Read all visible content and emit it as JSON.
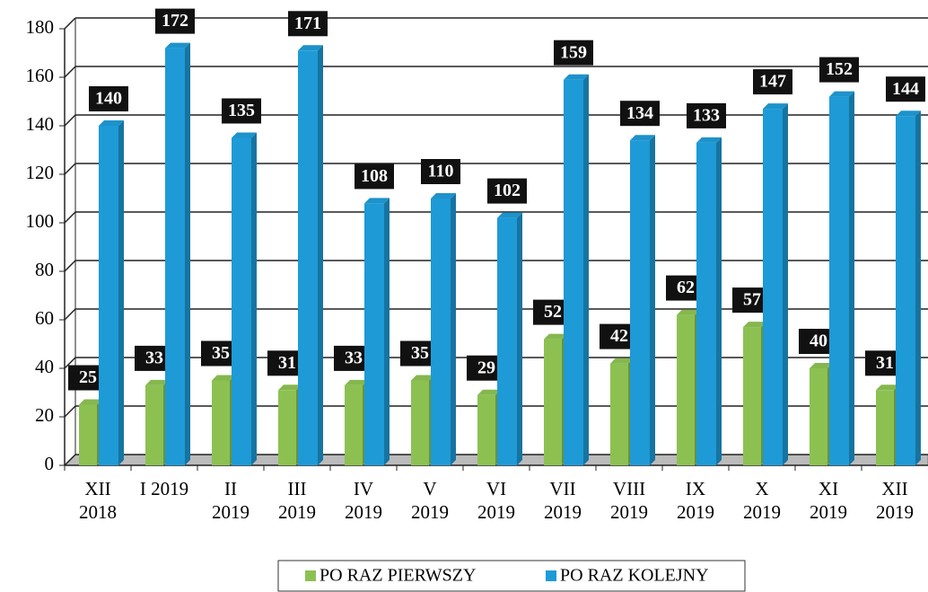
{
  "chart_data": {
    "type": "bar3d",
    "categories": [
      "XII\n2018",
      "I 2019",
      "II\n2019",
      "III\n2019",
      "IV\n2019",
      "V\n2019",
      "VI\n2019",
      "VII\n2019",
      "VIII\n2019",
      "IX\n2019",
      "X\n2019",
      "XI\n2019",
      "XII\n2019"
    ],
    "series": [
      {
        "name": "PO RAZ PIERWSZY",
        "color": "#8cc152",
        "values": [
          25,
          33,
          35,
          31,
          33,
          35,
          29,
          52,
          42,
          62,
          57,
          40,
          31
        ]
      },
      {
        "name": "PO RAZ KOLEJNY",
        "color": "#1e9ad6",
        "values": [
          140,
          172,
          135,
          171,
          108,
          110,
          102,
          159,
          134,
          133,
          147,
          152,
          144
        ]
      }
    ],
    "ylim": [
      0,
      180
    ],
    "yticks": [
      0,
      20,
      40,
      60,
      80,
      100,
      120,
      140,
      160,
      180
    ],
    "grid": true,
    "legend": "bottom"
  }
}
